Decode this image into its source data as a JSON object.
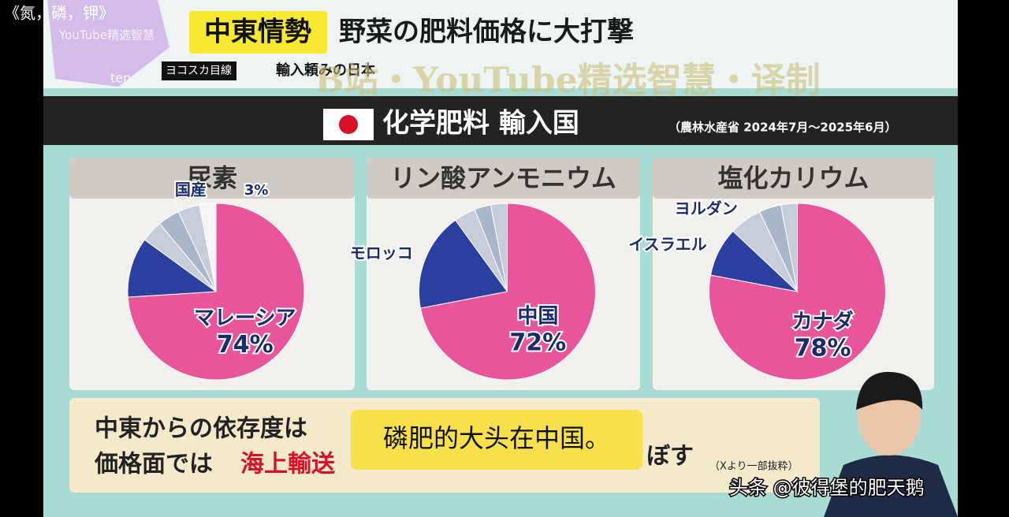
{
  "header": {
    "tag": "中東情勢",
    "headline": "野菜の肥料価格に大打撃",
    "corner": "《氮，磷，钾》",
    "channel": "YouTube精选智慧",
    "logo": "ten.",
    "segment": "ヨコスカ目線",
    "subhead": "輸入頼みの日本"
  },
  "watermark": "B站・YouTube精选智慧・译制",
  "section": {
    "title": "化学肥料 輸入国",
    "source": "（農林水産省 2024年7月～2025年6月）"
  },
  "chart_data": [
    {
      "type": "pie",
      "title": "尿素",
      "categories": [
        "マレーシア",
        null,
        null,
        null,
        null,
        "国産"
      ],
      "values": [
        74,
        11,
        4,
        4,
        4,
        3
      ],
      "value_labels": [
        "74%",
        null,
        null,
        null,
        null,
        "3%"
      ],
      "colors": [
        "#e8559a",
        "#2b3f9e",
        "#c7cdd8",
        "#a9b6c9",
        "#c7cdd8",
        "#f4f4f4"
      ]
    },
    {
      "type": "pie",
      "title": "リン酸アンモニウム",
      "categories": [
        "中国",
        "モロッコ",
        null,
        null,
        null
      ],
      "values": [
        72,
        18,
        4,
        3,
        3
      ],
      "value_labels": [
        "72%",
        null,
        null,
        null,
        null
      ],
      "colors": [
        "#e8559a",
        "#2b3f9e",
        "#c7cdd8",
        "#a9b6c9",
        "#c7cdd8"
      ]
    },
    {
      "type": "pie",
      "title": "塩化カリウム",
      "categories": [
        "カナダ",
        "イスラエル",
        "ヨルダン",
        null,
        null
      ],
      "values": [
        78,
        9,
        6,
        4,
        3
      ],
      "value_labels": [
        "78%",
        null,
        null,
        null,
        null
      ],
      "colors": [
        "#e8559a",
        "#2b3f9e",
        "#c7cdd8",
        "#a9b6c9",
        "#c7cdd8"
      ]
    }
  ],
  "note": {
    "line1": "中東からの依存度は",
    "line2a": "価格面では",
    "line2b": "海上輸送",
    "line2c": "ぼす",
    "source": "（Xより一部抜粋）"
  },
  "subtitle": "磷肥的大头在中国。",
  "credit": "头条 @彼得堡的肥天鹅"
}
